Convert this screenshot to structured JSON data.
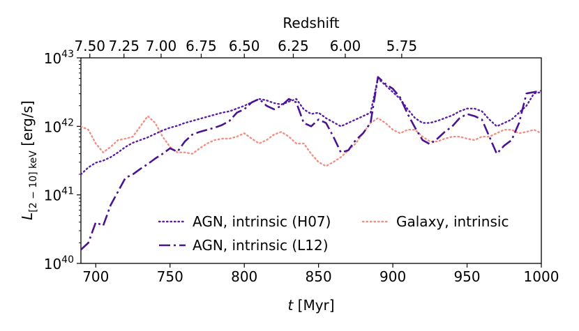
{
  "chart_data": {
    "type": "line",
    "title": "",
    "xlabel": "t [Myr]",
    "xlabel_italic": "t",
    "xlabel_unit": " [Myr]",
    "ylabel": "L[2-10] keV [erg/s]",
    "ylabel_unit": " [erg/s]",
    "top_axis_label": "Redshift",
    "xlim": [
      690,
      1000
    ],
    "ylim_log10": [
      40,
      43
    ],
    "xticks": [
      700,
      750,
      800,
      850,
      900,
      950,
      1000
    ],
    "xtick_labels": [
      "700",
      "750",
      "800",
      "850",
      "900",
      "950",
      "1000"
    ],
    "yticks_log10": [
      40,
      41,
      42,
      43
    ],
    "ytick_labels": [
      "10",
      "10",
      "10",
      "10"
    ],
    "ytick_exponents": [
      "40",
      "41",
      "42",
      "43"
    ],
    "top_ticks": [
      {
        "label": "7.50",
        "t": 696
      },
      {
        "label": "7.25",
        "t": 719
      },
      {
        "label": "7.00",
        "t": 744
      },
      {
        "label": "6.75",
        "t": 771
      },
      {
        "label": "6.50",
        "t": 800
      },
      {
        "label": "6.25",
        "t": 833
      },
      {
        "label": "6.00",
        "t": 868
      },
      {
        "label": "5.75",
        "t": 906
      }
    ],
    "top_ticks_note": "top-axis ticks placed at cosmic time (Myr)",
    "legend": {
      "placement": "lower-center",
      "columns": 2
    },
    "series": [
      {
        "name": "AGN, intrinsic (H07)",
        "color": "#5a1ea6",
        "style": "dotted",
        "x": [
          690,
          695,
          700,
          705,
          710,
          715,
          720,
          725,
          730,
          735,
          740,
          745,
          750,
          755,
          760,
          765,
          770,
          775,
          780,
          785,
          790,
          795,
          800,
          805,
          810,
          815,
          820,
          825,
          830,
          835,
          840,
          845,
          850,
          855,
          860,
          865,
          870,
          875,
          880,
          885,
          890,
          895,
          900,
          905,
          910,
          915,
          920,
          925,
          930,
          935,
          940,
          945,
          950,
          955,
          960,
          965,
          970,
          975,
          980,
          985,
          990,
          995,
          1000
        ],
        "log10_y": [
          41.3,
          41.4,
          41.47,
          41.5,
          41.55,
          41.62,
          41.7,
          41.76,
          41.8,
          41.84,
          41.89,
          41.94,
          41.98,
          42.01,
          42.05,
          42.08,
          42.11,
          42.14,
          42.17,
          42.2,
          42.22,
          42.26,
          42.3,
          42.35,
          42.4,
          42.38,
          42.34,
          42.32,
          42.36,
          42.4,
          42.25,
          42.18,
          42.2,
          42.12,
          42.06,
          42.0,
          42.05,
          42.1,
          42.15,
          42.2,
          42.7,
          42.6,
          42.5,
          42.4,
          42.25,
          42.12,
          42.05,
          42.05,
          42.08,
          42.12,
          42.16,
          42.22,
          42.26,
          42.26,
          42.22,
          42.1,
          42.0,
          42.05,
          42.1,
          42.2,
          42.3,
          42.48,
          42.5
        ]
      },
      {
        "name": "AGN, intrinsic (L12)",
        "color": "#4a1490",
        "style": "dashdot",
        "x": [
          690,
          695,
          700,
          705,
          710,
          715,
          720,
          725,
          730,
          735,
          740,
          745,
          750,
          755,
          760,
          765,
          770,
          775,
          780,
          785,
          790,
          795,
          800,
          805,
          810,
          815,
          820,
          825,
          830,
          835,
          840,
          845,
          850,
          855,
          860,
          865,
          870,
          875,
          880,
          885,
          890,
          895,
          900,
          905,
          910,
          915,
          920,
          925,
          930,
          935,
          940,
          945,
          950,
          955,
          960,
          965,
          970,
          975,
          980,
          985,
          990,
          995,
          1000
        ],
        "log10_y": [
          40.2,
          40.3,
          40.6,
          40.55,
          40.85,
          41.05,
          41.25,
          41.3,
          41.38,
          41.45,
          41.53,
          41.6,
          41.68,
          41.63,
          41.78,
          41.88,
          41.92,
          41.95,
          41.98,
          42.02,
          42.08,
          42.2,
          42.25,
          42.35,
          42.4,
          42.3,
          42.25,
          42.3,
          42.4,
          42.35,
          42.05,
          42.0,
          42.1,
          42.05,
          41.85,
          41.62,
          41.65,
          41.8,
          41.9,
          42.05,
          42.72,
          42.62,
          42.55,
          42.42,
          42.18,
          41.98,
          41.8,
          41.74,
          41.82,
          41.92,
          42.0,
          42.12,
          42.18,
          42.15,
          42.1,
          41.85,
          41.6,
          41.72,
          41.8,
          42.05,
          42.48,
          42.5,
          42.52
        ]
      },
      {
        "name": "Galaxy, intrinsic",
        "color": "#f28e82",
        "style": "dotted",
        "x": [
          690,
          695,
          700,
          705,
          710,
          715,
          720,
          725,
          730,
          735,
          740,
          745,
          750,
          755,
          760,
          765,
          770,
          775,
          780,
          785,
          790,
          795,
          800,
          805,
          810,
          815,
          820,
          825,
          830,
          835,
          840,
          845,
          850,
          855,
          860,
          865,
          870,
          875,
          880,
          885,
          890,
          895,
          900,
          905,
          910,
          915,
          920,
          925,
          930,
          935,
          940,
          945,
          950,
          955,
          960,
          965,
          970,
          975,
          980,
          985,
          990,
          995,
          1000
        ],
        "log10_y": [
          42.0,
          41.95,
          41.75,
          41.62,
          41.7,
          41.8,
          41.82,
          41.85,
          42.0,
          42.15,
          42.05,
          41.85,
          41.7,
          41.62,
          41.62,
          41.6,
          41.68,
          41.75,
          41.8,
          41.82,
          41.82,
          41.85,
          41.9,
          41.82,
          41.75,
          41.8,
          41.88,
          41.92,
          41.85,
          41.75,
          41.75,
          41.6,
          41.48,
          41.42,
          41.48,
          41.55,
          41.65,
          41.75,
          41.9,
          42.05,
          42.12,
          42.05,
          41.95,
          41.9,
          41.95,
          41.95,
          41.85,
          41.78,
          41.78,
          41.82,
          41.85,
          41.85,
          41.82,
          41.8,
          41.85,
          41.85,
          41.9,
          41.95,
          41.95,
          41.9,
          41.92,
          41.95,
          41.9
        ]
      }
    ]
  }
}
